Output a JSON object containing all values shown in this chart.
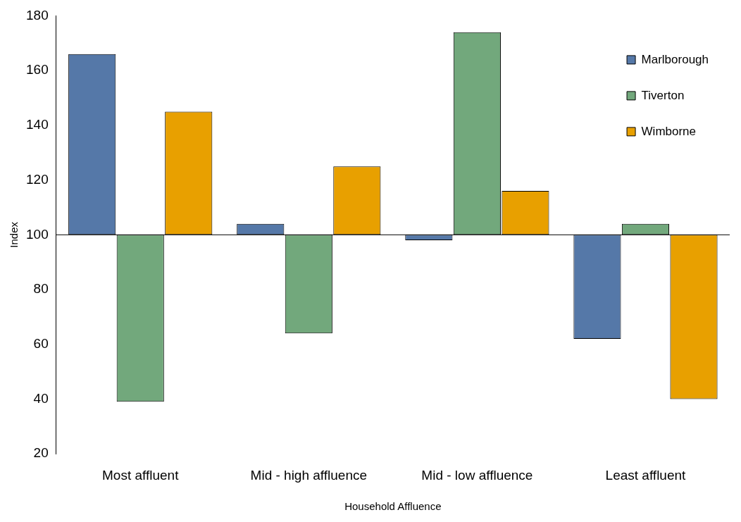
{
  "chart_data": {
    "type": "bar",
    "xlabel": "Household Affluence",
    "ylabel": "Index",
    "categories": [
      "Most affluent",
      "Mid - high affluence",
      "Mid - low affluence",
      "Least affluent"
    ],
    "series": [
      {
        "name": "Marlborough",
        "color": "#5578a8",
        "base": [
          100,
          100,
          100,
          100
        ],
        "values": [
          66,
          4,
          -2,
          -38
        ]
      },
      {
        "name": "Tiverton",
        "color": "#72a87c",
        "base": [
          100,
          100,
          100,
          100
        ],
        "values": [
          -61,
          -36,
          74,
          4
        ]
      },
      {
        "name": "Wimborne",
        "color": "#e8a000",
        "base": [
          100,
          100,
          100,
          100
        ],
        "values": [
          45,
          25,
          16,
          -60
        ]
      }
    ],
    "ylim": [
      20,
      180
    ],
    "yticks": [
      20,
      40,
      60,
      80,
      100,
      120,
      140,
      160,
      180
    ],
    "ref_lines": [
      {
        "axis": "y",
        "value": 100,
        "color": "#000000"
      }
    ],
    "grid": false,
    "legend": "top right"
  }
}
